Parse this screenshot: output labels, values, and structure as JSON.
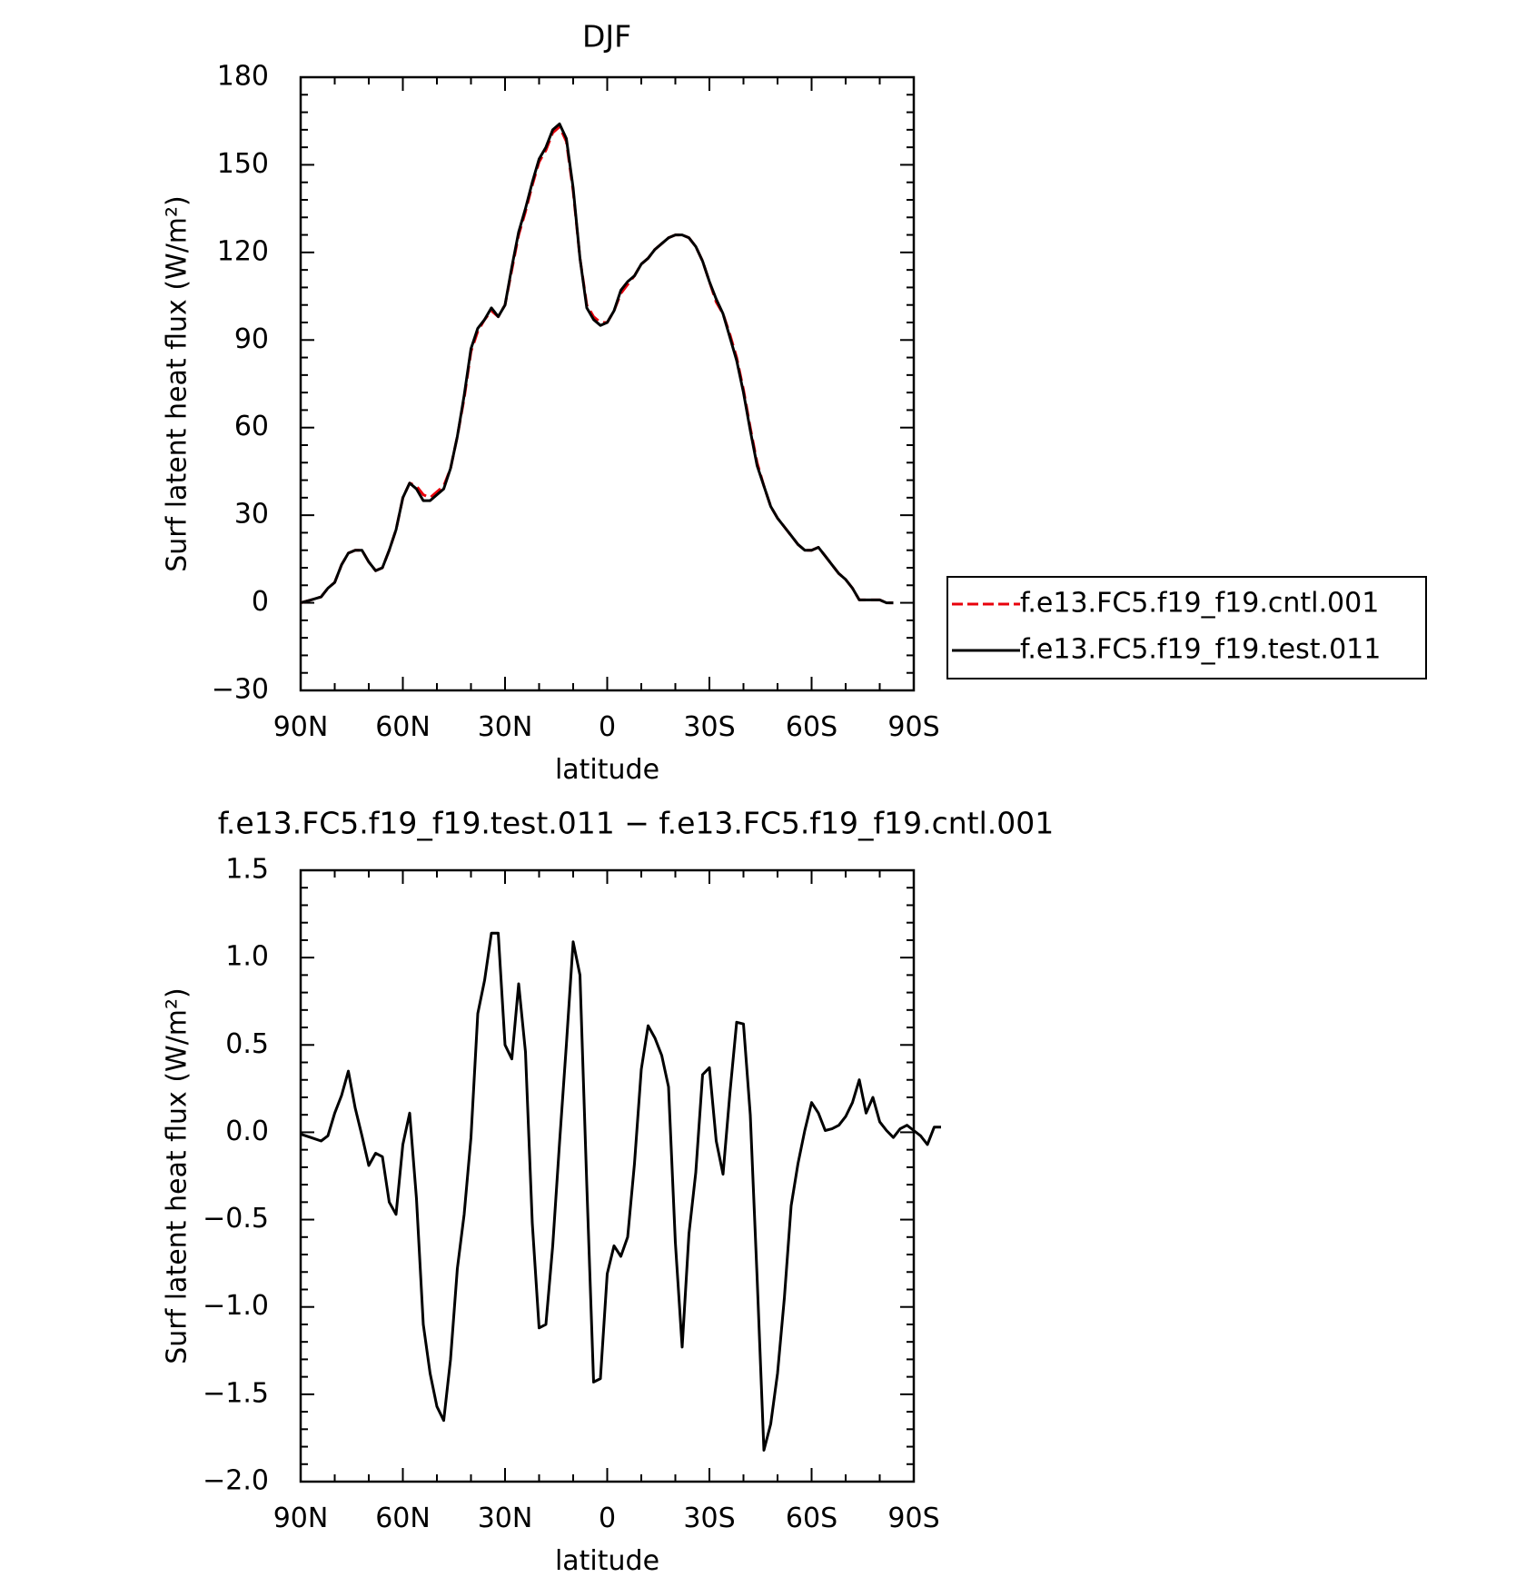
{
  "chart_data": [
    {
      "type": "line",
      "title": "DJF",
      "xlabel": "latitude",
      "ylabel": "Surf latent heat flux (W/m²)",
      "xlim": [
        -90,
        90
      ],
      "ylim": [
        -30,
        180
      ],
      "x_ticks": [
        -90,
        -60,
        -30,
        0,
        30,
        60,
        90
      ],
      "x_tick_labels": [
        "90N",
        "60N",
        "30N",
        "0",
        "30S",
        "60S",
        "90S"
      ],
      "y_ticks": [
        -30,
        0,
        30,
        60,
        90,
        120,
        150,
        180
      ],
      "y_tick_labels": [
        "−30",
        "0",
        "30",
        "60",
        "90",
        "120",
        "150",
        "180"
      ],
      "grid": false,
      "legend": "right",
      "series": [
        {
          "name": "f.e13.FC5.f19_f19.cntl.001",
          "color": "#e8000b",
          "dash": "dashed",
          "points": [
            [
              -90,
              0
            ],
            [
              -87,
              1
            ],
            [
              -84,
              2
            ],
            [
              -82,
              5
            ],
            [
              -80,
              7
            ],
            [
              -78,
              13
            ],
            [
              -76,
              17
            ],
            [
              -74,
              18
            ],
            [
              -72,
              18
            ],
            [
              -70,
              14
            ],
            [
              -68,
              11
            ],
            [
              -66,
              12
            ],
            [
              -64,
              18
            ],
            [
              -62,
              25
            ],
            [
              -60,
              36
            ],
            [
              -58,
              41
            ],
            [
              -56,
              40
            ],
            [
              -54,
              37
            ],
            [
              -52,
              36
            ],
            [
              -50,
              38
            ],
            [
              -48,
              40
            ],
            [
              -46,
              46
            ],
            [
              -44,
              57
            ],
            [
              -42,
              70
            ],
            [
              -40,
              86
            ],
            [
              -38,
              93
            ],
            [
              -36,
              97
            ],
            [
              -34,
              100
            ],
            [
              -32,
              98
            ],
            [
              -30,
              102
            ],
            [
              -28,
              114
            ],
            [
              -26,
              126
            ],
            [
              -24,
              134
            ],
            [
              -22,
              143
            ],
            [
              -20,
              151
            ],
            [
              -18,
              155
            ],
            [
              -16,
              161
            ],
            [
              -14,
              163
            ],
            [
              -12,
              158
            ],
            [
              -10,
              141
            ],
            [
              -8,
              118
            ],
            [
              -6,
              102
            ],
            [
              -4,
              98
            ],
            [
              -2,
              96
            ],
            [
              0,
              96
            ],
            [
              2,
              100
            ],
            [
              4,
              106
            ],
            [
              6,
              109
            ],
            [
              8,
              112
            ],
            [
              10,
              116
            ],
            [
              12,
              118
            ],
            [
              14,
              121
            ],
            [
              16,
              123
            ],
            [
              18,
              125
            ],
            [
              20,
              126
            ],
            [
              22,
              126
            ],
            [
              24,
              125
            ],
            [
              26,
              122
            ],
            [
              28,
              117
            ],
            [
              30,
              110
            ],
            [
              32,
              103
            ],
            [
              34,
              99
            ],
            [
              36,
              92
            ],
            [
              38,
              84
            ],
            [
              40,
              73
            ],
            [
              42,
              60
            ],
            [
              44,
              48
            ],
            [
              46,
              40
            ],
            [
              48,
              33
            ],
            [
              50,
              29
            ],
            [
              52,
              26
            ],
            [
              54,
              23
            ],
            [
              56,
              20
            ],
            [
              58,
              18
            ],
            [
              60,
              18
            ],
            [
              62,
              19
            ],
            [
              64,
              16
            ],
            [
              66,
              13
            ],
            [
              68,
              10
            ],
            [
              70,
              8
            ],
            [
              72,
              5
            ],
            [
              74,
              1
            ],
            [
              76,
              1
            ],
            [
              78,
              1
            ],
            [
              80,
              1
            ],
            [
              82,
              0
            ],
            [
              84,
              0
            ]
          ]
        },
        {
          "name": "f.e13.FC5.f19_f19.test.011",
          "color": "#000000",
          "dash": "solid",
          "points": [
            [
              -90,
              0
            ],
            [
              -87,
              1
            ],
            [
              -84,
              2
            ],
            [
              -82,
              5
            ],
            [
              -80,
              7
            ],
            [
              -78,
              13
            ],
            [
              -76,
              17
            ],
            [
              -74,
              18
            ],
            [
              -72,
              18
            ],
            [
              -70,
              14
            ],
            [
              -68,
              11
            ],
            [
              -66,
              12
            ],
            [
              -64,
              18
            ],
            [
              -62,
              25
            ],
            [
              -60,
              36
            ],
            [
              -58,
              41
            ],
            [
              -56,
              39
            ],
            [
              -54,
              35
            ],
            [
              -52,
              35
            ],
            [
              -50,
              37
            ],
            [
              -48,
              39
            ],
            [
              -46,
              46
            ],
            [
              -44,
              57
            ],
            [
              -42,
              71
            ],
            [
              -40,
              87
            ],
            [
              -38,
              94
            ],
            [
              -36,
              97
            ],
            [
              -34,
              101
            ],
            [
              -32,
              98
            ],
            [
              -30,
              102
            ],
            [
              -28,
              115
            ],
            [
              -26,
              127
            ],
            [
              -24,
              135
            ],
            [
              -22,
              144
            ],
            [
              -20,
              152
            ],
            [
              -18,
              156
            ],
            [
              -16,
              162
            ],
            [
              -14,
              164
            ],
            [
              -12,
              159
            ],
            [
              -10,
              142
            ],
            [
              -8,
              118
            ],
            [
              -6,
              101
            ],
            [
              -4,
              97
            ],
            [
              -2,
              95
            ],
            [
              0,
              96
            ],
            [
              2,
              100
            ],
            [
              4,
              107
            ],
            [
              6,
              110
            ],
            [
              8,
              112
            ],
            [
              10,
              116
            ],
            [
              12,
              118
            ],
            [
              14,
              121
            ],
            [
              16,
              123
            ],
            [
              18,
              125
            ],
            [
              20,
              126
            ],
            [
              22,
              126
            ],
            [
              24,
              125
            ],
            [
              26,
              122
            ],
            [
              28,
              117
            ],
            [
              30,
              110
            ],
            [
              32,
              104
            ],
            [
              34,
              99
            ],
            [
              36,
              91
            ],
            [
              38,
              83
            ],
            [
              40,
              72
            ],
            [
              42,
              59
            ],
            [
              44,
              47
            ],
            [
              46,
              40
            ],
            [
              48,
              33
            ],
            [
              50,
              29
            ],
            [
              52,
              26
            ],
            [
              54,
              23
            ],
            [
              56,
              20
            ],
            [
              58,
              18
            ],
            [
              60,
              18
            ],
            [
              62,
              19
            ],
            [
              64,
              16
            ],
            [
              66,
              13
            ],
            [
              68,
              10
            ],
            [
              70,
              8
            ],
            [
              72,
              5
            ],
            [
              74,
              1
            ],
            [
              76,
              1
            ],
            [
              78,
              1
            ],
            [
              80,
              1
            ],
            [
              82,
              0
            ],
            [
              84,
              0
            ]
          ]
        }
      ]
    },
    {
      "type": "line",
      "title": "f.e13.FC5.f19_f19.test.011 − f.e13.FC5.f19_f19.cntl.001",
      "xlabel": "latitude",
      "ylabel": "Surf latent heat flux (W/m²)",
      "xlim": [
        -90,
        90
      ],
      "ylim": [
        -2.0,
        1.5
      ],
      "x_ticks": [
        -90,
        -60,
        -30,
        0,
        30,
        60,
        90
      ],
      "x_tick_labels": [
        "90N",
        "60N",
        "30N",
        "0",
        "30S",
        "60S",
        "90S"
      ],
      "y_ticks": [
        -2.0,
        -1.5,
        -1.0,
        -0.5,
        0.0,
        0.5,
        1.0,
        1.5
      ],
      "y_tick_labels": [
        "−2.0",
        "−1.5",
        "−1.0",
        "−0.5",
        "0.0",
        "0.5",
        "1.0",
        "1.5"
      ],
      "grid": false,
      "series": [
        {
          "color": "#000000",
          "dash": "solid",
          "points": [
            [
              -90,
              -0.01
            ],
            [
              -87,
              -0.03
            ],
            [
              -84,
              -0.05
            ],
            [
              -82,
              -0.02
            ],
            [
              -80,
              0.11
            ],
            [
              -78,
              0.21
            ],
            [
              -76,
              0.35
            ],
            [
              -74,
              0.14
            ],
            [
              -72,
              -0.02
            ],
            [
              -70,
              -0.19
            ],
            [
              -68,
              -0.12
            ],
            [
              -66,
              -0.14
            ],
            [
              -64,
              -0.4
            ],
            [
              -62,
              -0.47
            ],
            [
              -60,
              -0.07
            ],
            [
              -58,
              0.11
            ],
            [
              -56,
              -0.38
            ],
            [
              -54,
              -1.1
            ],
            [
              -52,
              -1.38
            ],
            [
              -50,
              -1.57
            ],
            [
              -48,
              -1.65
            ],
            [
              -46,
              -1.3
            ],
            [
              -44,
              -0.78
            ],
            [
              -42,
              -0.47
            ],
            [
              -40,
              -0.03
            ],
            [
              -38,
              0.68
            ],
            [
              -36,
              0.87
            ],
            [
              -34,
              1.14
            ],
            [
              -32,
              1.14
            ],
            [
              -30,
              0.5
            ],
            [
              -28,
              0.42
            ],
            [
              -26,
              0.85
            ],
            [
              -24,
              0.46
            ],
            [
              -22,
              -0.52
            ],
            [
              -20,
              -1.12
            ],
            [
              -18,
              -1.1
            ],
            [
              -16,
              -0.65
            ],
            [
              -14,
              -0.06
            ],
            [
              -12,
              0.5
            ],
            [
              -10,
              1.09
            ],
            [
              -8,
              0.9
            ],
            [
              -6,
              -0.3
            ],
            [
              -4,
              -1.43
            ],
            [
              -2,
              -1.41
            ],
            [
              0,
              -0.81
            ],
            [
              2,
              -0.65
            ],
            [
              4,
              -0.71
            ],
            [
              6,
              -0.6
            ],
            [
              8,
              -0.18
            ],
            [
              10,
              0.36
            ],
            [
              12,
              0.61
            ],
            [
              14,
              0.54
            ],
            [
              16,
              0.44
            ],
            [
              18,
              0.26
            ],
            [
              20,
              -0.63
            ],
            [
              22,
              -1.23
            ],
            [
              24,
              -0.58
            ],
            [
              26,
              -0.23
            ],
            [
              28,
              0.33
            ],
            [
              30,
              0.37
            ],
            [
              32,
              -0.05
            ],
            [
              34,
              -0.24
            ],
            [
              36,
              0.22
            ],
            [
              38,
              0.63
            ],
            [
              40,
              0.62
            ],
            [
              42,
              0.1
            ],
            [
              44,
              -0.83
            ],
            [
              46,
              -1.82
            ],
            [
              48,
              -1.67
            ],
            [
              50,
              -1.38
            ],
            [
              52,
              -0.95
            ],
            [
              54,
              -0.42
            ],
            [
              56,
              -0.18
            ],
            [
              58,
              0.01
            ],
            [
              60,
              0.17
            ],
            [
              62,
              0.11
            ],
            [
              64,
              0.01
            ],
            [
              66,
              0.02
            ],
            [
              68,
              0.04
            ],
            [
              70,
              0.09
            ],
            [
              72,
              0.17
            ],
            [
              74,
              0.3
            ],
            [
              76,
              0.11
            ],
            [
              78,
              0.2
            ],
            [
              80,
              0.06
            ],
            [
              82,
              0.01
            ],
            [
              84,
              -0.03
            ],
            [
              86,
              0.02
            ],
            [
              88,
              0.04
            ],
            [
              90,
              0.01
            ],
            [
              92,
              -0.02
            ],
            [
              94,
              -0.07
            ],
            [
              96,
              0.03
            ],
            [
              98,
              0.03
            ]
          ]
        }
      ]
    }
  ]
}
